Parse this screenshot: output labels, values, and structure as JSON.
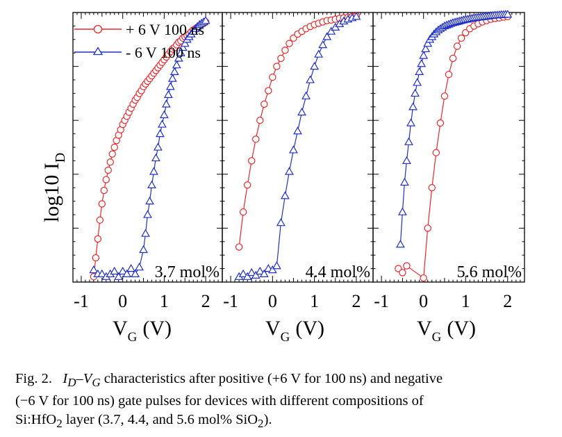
{
  "ylabel_main": "log10 I",
  "ylabel_sub": "D",
  "xlabel_main": "V",
  "xlabel_sub": "G",
  "xlabel_unit": "(V)",
  "caption": {
    "fig": "Fig. 2.",
    "line1": " characteristics after positive (+6 V for 100 ns) and negative",
    "line2": "(−6 V for 100 ns) gate pulses for devices with different compositions of",
    "line3a": "Si:HfO",
    "line3b": "2",
    "line3c": " layer (3.7, 4.4, and 5.6 mol% SiO",
    "line3d": "2",
    "line3e": ")."
  },
  "colors": {
    "positive": "#e8262a",
    "negative": "#1f2fc8"
  },
  "chart_data": [
    {
      "type": "line",
      "panel_label": "3.7 mol%",
      "xlim": [
        -1.2,
        2.4
      ],
      "ylim": [
        0,
        10
      ],
      "x_ticks": [
        -1,
        0,
        1,
        2
      ],
      "series": [
        {
          "name": "+ 6 V 100 ns",
          "color": "#e8262a",
          "marker": "circle",
          "x": [
            -0.7,
            -0.65,
            -0.6,
            -0.55,
            -0.5,
            -0.45,
            -0.4,
            -0.35,
            -0.3,
            -0.25,
            -0.2,
            -0.15,
            -0.1,
            -0.05,
            0.0,
            0.05,
            0.1,
            0.15,
            0.2,
            0.25,
            0.3,
            0.35,
            0.4,
            0.45,
            0.5,
            0.55,
            0.6,
            0.65,
            0.7,
            0.75,
            0.8,
            0.85,
            0.9,
            0.95,
            1.0,
            1.05,
            1.1,
            1.15,
            1.2,
            1.25,
            1.3,
            1.35,
            1.4,
            1.45,
            1.5,
            1.55,
            1.6,
            1.65,
            1.7,
            1.75,
            1.8,
            1.85,
            1.9,
            1.95,
            2.0
          ],
          "y": [
            0.2,
            0.9,
            1.6,
            2.3,
            2.9,
            3.4,
            3.8,
            4.15,
            4.45,
            4.75,
            5.0,
            5.25,
            5.45,
            5.65,
            5.85,
            6.0,
            6.15,
            6.3,
            6.45,
            6.6,
            6.75,
            6.85,
            7.0,
            7.1,
            7.25,
            7.35,
            7.45,
            7.55,
            7.65,
            7.75,
            7.85,
            7.95,
            8.05,
            8.15,
            8.25,
            8.35,
            8.45,
            8.55,
            8.65,
            8.7,
            8.8,
            8.9,
            8.95,
            9.05,
            9.1,
            9.15,
            9.2,
            9.28,
            9.35,
            9.4,
            9.45,
            9.5,
            9.55,
            9.6,
            9.65
          ]
        },
        {
          "name": "- 6 V 100 ns",
          "color": "#1f2fc8",
          "marker": "triangle",
          "x": [
            -0.7,
            -0.6,
            -0.5,
            -0.4,
            -0.3,
            -0.2,
            -0.1,
            0.0,
            0.1,
            0.2,
            0.3,
            0.4,
            0.5,
            0.55,
            0.6,
            0.65,
            0.7,
            0.75,
            0.8,
            0.85,
            0.9,
            0.95,
            1.0,
            1.05,
            1.1,
            1.15,
            1.2,
            1.25,
            1.3,
            1.35,
            1.4,
            1.45,
            1.5,
            1.55,
            1.6,
            1.65,
            1.7,
            1.75,
            1.8,
            1.85,
            1.9,
            1.95,
            2.0
          ],
          "y": [
            0.45,
            0.3,
            0.3,
            0.2,
            0.3,
            0.4,
            0.2,
            0.4,
            0.3,
            0.5,
            0.3,
            0.55,
            1.2,
            1.8,
            2.5,
            3.0,
            3.6,
            4.1,
            4.6,
            5.0,
            5.5,
            5.85,
            6.2,
            6.6,
            6.95,
            7.25,
            7.55,
            7.8,
            8.05,
            8.3,
            8.5,
            8.7,
            8.85,
            9.0,
            9.1,
            9.2,
            9.3,
            9.4,
            9.48,
            9.55,
            9.6,
            9.65,
            9.7
          ]
        }
      ]
    },
    {
      "type": "line",
      "panel_label": "4.4 mol%",
      "xlim": [
        -1.2,
        2.4
      ],
      "ylim": [
        0,
        10
      ],
      "x_ticks": [
        -1,
        0,
        1,
        2
      ],
      "series": [
        {
          "name": "+ 6 V 100 ns",
          "color": "#e8262a",
          "marker": "circle",
          "x": [
            -0.8,
            -0.7,
            -0.6,
            -0.5,
            -0.4,
            -0.3,
            -0.2,
            -0.1,
            0.0,
            0.1,
            0.2,
            0.3,
            0.4,
            0.5,
            0.6,
            0.7,
            0.8,
            0.9,
            1.0,
            1.1,
            1.2,
            1.3,
            1.4,
            1.5,
            1.6,
            1.7,
            1.8,
            1.9,
            2.0
          ],
          "y": [
            1.3,
            2.6,
            3.6,
            4.5,
            5.3,
            6.0,
            6.6,
            7.1,
            7.6,
            8.0,
            8.3,
            8.6,
            8.85,
            9.05,
            9.2,
            9.3,
            9.4,
            9.48,
            9.55,
            9.6,
            9.65,
            9.7,
            9.72,
            9.75,
            9.78,
            9.8,
            9.82,
            9.85,
            9.87
          ]
        },
        {
          "name": "- 6 V 100 ns",
          "color": "#1f2fc8",
          "marker": "triangle",
          "x": [
            -0.8,
            -0.7,
            -0.6,
            -0.5,
            -0.4,
            -0.3,
            -0.2,
            -0.1,
            0.0,
            0.1,
            0.2,
            0.3,
            0.4,
            0.5,
            0.6,
            0.7,
            0.8,
            0.9,
            1.0,
            1.1,
            1.2,
            1.3,
            1.4,
            1.5,
            1.6,
            1.7,
            1.8,
            1.9,
            2.0
          ],
          "y": [
            0.2,
            0.3,
            0.2,
            0.35,
            0.25,
            0.4,
            0.3,
            0.5,
            0.45,
            0.6,
            2.2,
            3.2,
            4.1,
            4.9,
            5.6,
            6.3,
            6.9,
            7.5,
            8.0,
            8.45,
            8.8,
            9.1,
            9.3,
            9.45,
            9.58,
            9.68,
            9.75,
            9.8,
            9.85
          ]
        }
      ]
    },
    {
      "type": "line",
      "panel_label": "5.6 mol%",
      "xlim": [
        -1.2,
        2.4
      ],
      "ylim": [
        0,
        10
      ],
      "x_ticks": [
        -1,
        0,
        1,
        2
      ],
      "series": [
        {
          "name": "+ 6 V 100 ns",
          "color": "#e8262a",
          "marker": "circle",
          "x": [
            -0.6,
            -0.5,
            -0.4,
            0.0,
            0.1,
            0.2,
            0.3,
            0.4,
            0.5,
            0.6,
            0.7,
            0.8,
            0.9,
            1.0,
            1.1,
            1.2,
            1.3,
            1.4,
            1.5,
            1.6,
            1.7,
            1.8,
            1.9,
            2.0
          ],
          "y": [
            0.5,
            0.35,
            0.6,
            0.15,
            2.0,
            3.5,
            4.8,
            5.9,
            6.9,
            7.7,
            8.3,
            8.75,
            9.05,
            9.25,
            9.4,
            9.5,
            9.58,
            9.65,
            9.7,
            9.75,
            9.78,
            9.8,
            9.83,
            9.85
          ]
        },
        {
          "name": "- 6 V 100 ns",
          "color": "#1f2fc8",
          "marker": "triangle",
          "x": [
            -0.55,
            -0.5,
            -0.45,
            -0.4,
            -0.35,
            -0.3,
            -0.25,
            -0.2,
            -0.15,
            -0.1,
            -0.05,
            0.0,
            0.05,
            0.1,
            0.15,
            0.2,
            0.25,
            0.3,
            0.35,
            0.4,
            0.45,
            0.5,
            0.55,
            0.6,
            0.65,
            0.7,
            0.75,
            0.8,
            0.85,
            0.9,
            0.95,
            1.0,
            1.05,
            1.1,
            1.15,
            1.2,
            1.25,
            1.3,
            1.35,
            1.4,
            1.45,
            1.5,
            1.55,
            1.6,
            1.65,
            1.7,
            1.75,
            1.8,
            1.85,
            1.9,
            1.95,
            2.0
          ],
          "y": [
            1.4,
            2.6,
            3.7,
            4.5,
            5.2,
            5.9,
            6.5,
            7.0,
            7.4,
            7.8,
            8.1,
            8.4,
            8.65,
            8.85,
            9.0,
            9.1,
            9.2,
            9.28,
            9.35,
            9.4,
            9.45,
            9.5,
            9.53,
            9.56,
            9.59,
            9.62,
            9.64,
            9.66,
            9.68,
            9.7,
            9.72,
            9.74,
            9.75,
            9.77,
            9.78,
            9.8,
            9.81,
            9.82,
            9.83,
            9.84,
            9.85,
            9.86,
            9.87,
            9.88,
            9.89,
            9.9,
            9.9,
            9.91,
            9.92,
            9.92,
            9.93,
            9.93
          ]
        }
      ]
    }
  ]
}
